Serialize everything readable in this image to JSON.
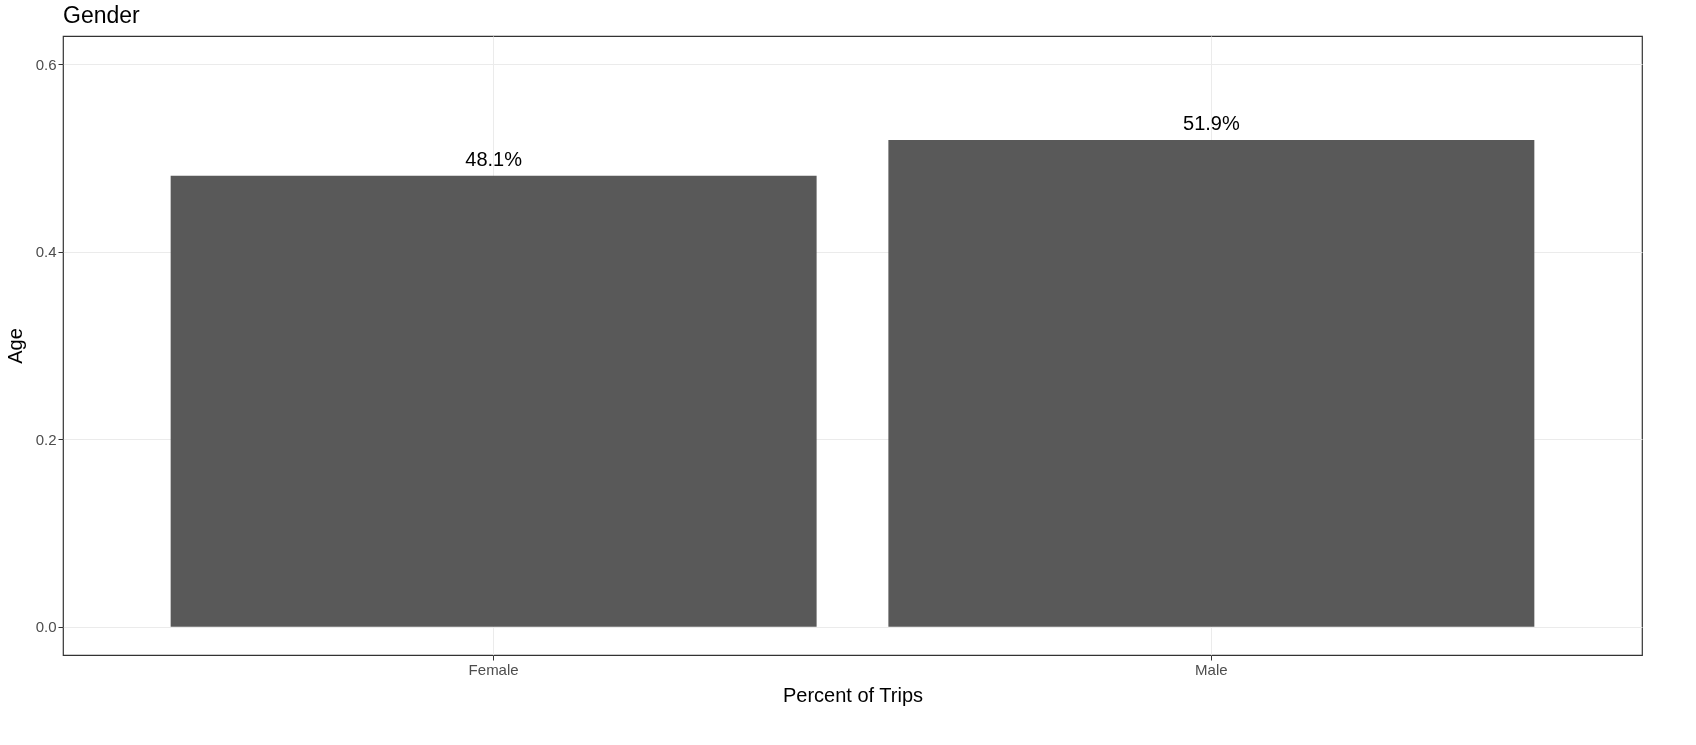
{
  "chart_data": {
    "type": "bar",
    "title": "Gender",
    "xlabel": "Percent of Trips",
    "ylabel": "Age",
    "categories": [
      "Female",
      "Male"
    ],
    "values": [
      0.481,
      0.519
    ],
    "value_labels": [
      "48.1%",
      "51.9%"
    ],
    "color": "#595959",
    "ylim": [
      -0.03,
      0.63
    ],
    "yticks": [
      {
        "value": 0,
        "label": "0.0"
      },
      0.2,
      0.4,
      0.6
    ],
    "grid": true
  }
}
